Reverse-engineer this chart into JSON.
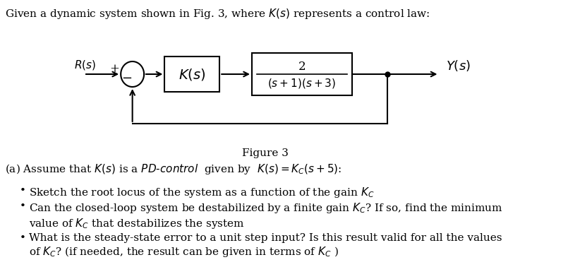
{
  "title_text": "Given a dynamic system shown in Fig. 3, where $K(s)$ represents a control law:",
  "figure_label": "Figure 3",
  "block1_label": "$K(s)$",
  "block2_num": "2",
  "block2_den": "$(s+1)(s+3)$",
  "Rs_label": "$R(s)$",
  "Ys_label": "$Y(s)$",
  "plus_label": "+",
  "minus_label": "−",
  "part_a_text": "(a) Assume that $K(s)$ is a $\\mathit{PD\\text{-}control}$  given by  $K(s)= K_C(s+5)$:",
  "bullet1": "Sketch the root locus of the system as a function of the gain $K_C$",
  "bullet2": "Can the closed-loop system be destabilized by a finite gain $K_C$? If so, find the minimum\nvalue of $K_C$ that destabilizes the system",
  "bullet3": "What is the steady-state error to a unit step input? Is this result valid for all the values\nof $K_C$? (if needed, the result can be given in terms of $K_C$ )",
  "bg_color": "#ffffff",
  "text_color": "#000000",
  "line_color": "#000000",
  "box_color": "#000000",
  "fontsize_main": 11,
  "fontsize_block": 12,
  "fontsize_fig_label": 11
}
